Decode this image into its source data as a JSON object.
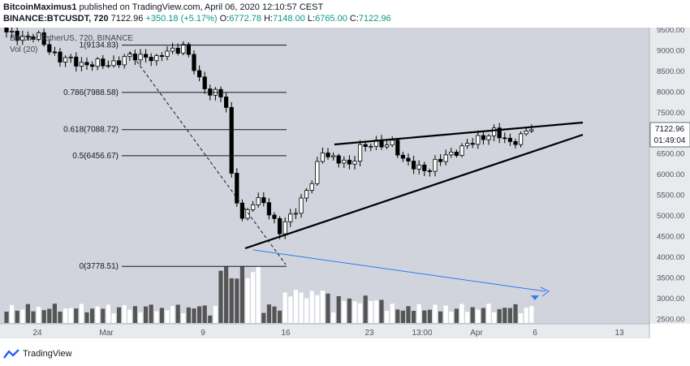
{
  "header": {
    "author": "BitcoinMaximus1",
    "published_text": "published on TradingView.com, April 06, 2020 12:10:57 CEST",
    "symbol_line": "BINANCE:BTCUSDT, 720",
    "last": "7122.96",
    "change": "+350.18 (+5.17%)",
    "o_label": "O:",
    "o_val": "6772.78",
    "h_label": "H:",
    "h_val": "7148.00",
    "l_label": "L:",
    "l_val": "6765.00",
    "c_label": "C:",
    "c_val": "7122.96"
  },
  "legend": {
    "title": "Bitcoin / TetherUS, 720, BINANCE",
    "vol": "Vol (20)"
  },
  "price_axis": {
    "labels": [
      "9500.00",
      "9000.00",
      "8500.00",
      "8000.00",
      "7500.00",
      "7000.00",
      "6500.00",
      "6000.00",
      "5500.00",
      "5000.00",
      "4500.00",
      "4000.00",
      "3500.00",
      "3000.00",
      "2500.00"
    ],
    "current_price": "7122.96",
    "countdown": "01:49:04"
  },
  "time_axis": {
    "labels": [
      "24",
      "Mar",
      "9",
      "16",
      "23",
      "13:00",
      "Apr",
      "6",
      "13"
    ]
  },
  "fib": {
    "levels": [
      {
        "label": "1(9134.83)",
        "price": 9134.83
      },
      {
        "label": "0.786(7988.58)",
        "price": 7988.58
      },
      {
        "label": "0.618(7088.72)",
        "price": 7088.72
      },
      {
        "label": "0.5(6456.67)",
        "price": 6456.67
      },
      {
        "label": "0(3778.51)",
        "price": 3778.51
      }
    ]
  },
  "colors": {
    "chart_bg": "#d1d4dc",
    "axis_bg": "#e9eaee",
    "up": "#ffffff",
    "down": "#000000",
    "vol_up": "#ffffff",
    "vol_down": "#555555",
    "forecast": "#3179f5",
    "fib_line": "#131722",
    "ohlc": "#089981"
  },
  "footer": {
    "brand": "TradingView"
  }
}
